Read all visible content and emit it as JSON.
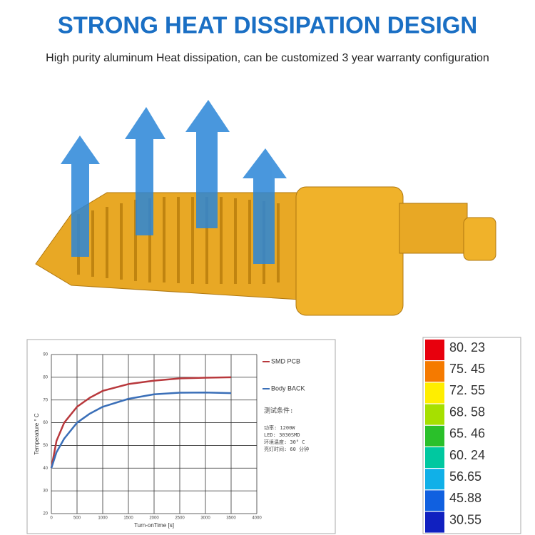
{
  "header": {
    "title": "STRONG HEAT DISSIPATION DESIGN",
    "subtitle": "High purity aluminum Heat dissipation, can be customized 3 year warranty configuration"
  },
  "chart_data": {
    "type": "line",
    "x_label": "Turn-onTime [s]",
    "y_label": "Temperature ° C",
    "x": [
      0,
      100,
      250,
      500,
      750,
      1000,
      1500,
      2000,
      2500,
      3000,
      3500
    ],
    "series": [
      {
        "name": "SMD PCB",
        "color": "#b8383c",
        "values": [
          40,
          52,
          60,
          67,
          71,
          74,
          77,
          78.5,
          79.5,
          79.8,
          80
        ]
      },
      {
        "name": "Body BACK",
        "color": "#3a6fb8",
        "values": [
          40,
          47,
          53,
          60,
          64,
          67,
          70.5,
          72.5,
          73.2,
          73.3,
          73
        ]
      }
    ],
    "xlim": [
      0,
      4000
    ],
    "xticks": [
      0,
      500,
      1000,
      1500,
      2000,
      2500,
      3000,
      3500,
      4000
    ],
    "ylim": [
      20,
      90
    ],
    "yticks": [
      20,
      30,
      40,
      50,
      60,
      70,
      80,
      90
    ],
    "grid": true,
    "annotations": [
      "测试条件:",
      "功率: 1200W",
      "LED: 3030SMD",
      "环境温度: 30° C",
      "亮灯时间: 60 分钟"
    ]
  },
  "color_scale": [
    {
      "label": "80. 23",
      "color": "#e8000d"
    },
    {
      "label": "75. 45",
      "color": "#f57a00"
    },
    {
      "label": "72. 55",
      "color": "#ffee00"
    },
    {
      "label": "68. 58",
      "color": "#a6e000"
    },
    {
      "label": "65. 46",
      "color": "#2ac02a"
    },
    {
      "label": "60. 24",
      "color": "#00c8a0"
    },
    {
      "label": "56.65",
      "color": "#10b0e8"
    },
    {
      "label": "45.88",
      "color": "#1060e0"
    },
    {
      "label": "30.55",
      "color": "#1020c0"
    }
  ]
}
